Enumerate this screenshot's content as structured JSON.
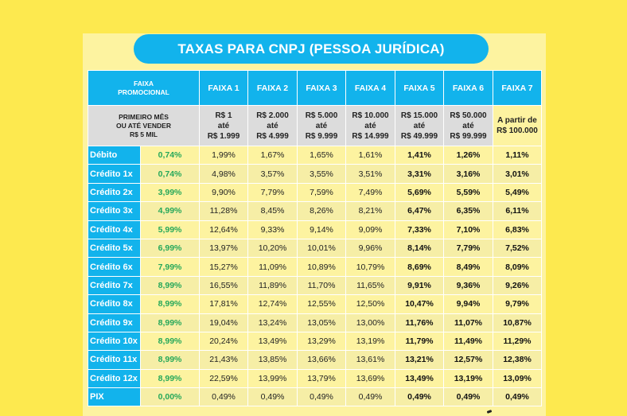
{
  "title": "TAXAS PARA CNPJ (PESSOA JURÍDICA)",
  "header": {
    "promo_label": [
      "FAIXA",
      "PROMOCIONAL"
    ],
    "faixas": [
      "FAIXA 1",
      "FAIXA 2",
      "FAIXA 3",
      "FAIXA 4",
      "FAIXA 5",
      "FAIXA 6",
      "FAIXA 7"
    ]
  },
  "subheader": {
    "promo_desc": [
      "PRIMEIRO MÊS",
      "OU ATÉ VENDER",
      "R$ 5 MIL"
    ],
    "ranges": [
      [
        "R$ 1",
        "até",
        "R$ 1.999"
      ],
      [
        "R$ 2.000",
        "até",
        "R$ 4.999"
      ],
      [
        "R$ 5.000",
        "até",
        "R$ 9.999"
      ],
      [
        "R$ 10.000",
        "até",
        "R$ 14.999"
      ],
      [
        "R$ 15.000",
        "até",
        "R$ 49.999"
      ],
      [
        "R$ 50.000",
        "até",
        "R$ 99.999"
      ],
      [
        "A partir de",
        "R$ 100.000"
      ]
    ]
  },
  "rows": [
    {
      "label": "Débito",
      "promo": "0,74%",
      "values": [
        "1,99%",
        "1,67%",
        "1,65%",
        "1,61%",
        "1,41%",
        "1,26%",
        "1,11%"
      ]
    },
    {
      "label": "Crédito 1x",
      "promo": "0,74%",
      "values": [
        "4,98%",
        "3,57%",
        "3,55%",
        "3,51%",
        "3,31%",
        "3,16%",
        "3,01%"
      ]
    },
    {
      "label": "Crédito 2x",
      "promo": "3,99%",
      "values": [
        "9,90%",
        "7,79%",
        "7,59%",
        "7,49%",
        "5,69%",
        "5,59%",
        "5,49%"
      ]
    },
    {
      "label": "Crédito 3x",
      "promo": "4,99%",
      "values": [
        "11,28%",
        "8,45%",
        "8,26%",
        "8,21%",
        "6,47%",
        "6,35%",
        "6,11%"
      ]
    },
    {
      "label": "Crédito 4x",
      "promo": "5,99%",
      "values": [
        "12,64%",
        "9,33%",
        "9,14%",
        "9,09%",
        "7,33%",
        "7,10%",
        "6,83%"
      ]
    },
    {
      "label": "Crédito 5x",
      "promo": "6,99%",
      "values": [
        "13,97%",
        "10,20%",
        "10,01%",
        "9,96%",
        "8,14%",
        "7,79%",
        "7,52%"
      ]
    },
    {
      "label": "Crédito 6x",
      "promo": "7,99%",
      "values": [
        "15,27%",
        "11,09%",
        "10,89%",
        "10,79%",
        "8,69%",
        "8,49%",
        "8,09%"
      ]
    },
    {
      "label": "Crédito 7x",
      "promo": "8,99%",
      "values": [
        "16,55%",
        "11,89%",
        "11,70%",
        "11,65%",
        "9,91%",
        "9,36%",
        "9,26%"
      ]
    },
    {
      "label": "Crédito 8x",
      "promo": "8,99%",
      "values": [
        "17,81%",
        "12,74%",
        "12,55%",
        "12,50%",
        "10,47%",
        "9,94%",
        "9,79%"
      ]
    },
    {
      "label": "Crédito 9x",
      "promo": "8,99%",
      "values": [
        "19,04%",
        "13,24%",
        "13,05%",
        "13,00%",
        "11,76%",
        "11,07%",
        "10,87%"
      ]
    },
    {
      "label": "Crédito 10x",
      "promo": "8,99%",
      "values": [
        "20,24%",
        "13,49%",
        "13,29%",
        "13,19%",
        "11,79%",
        "11,49%",
        "11,29%"
      ]
    },
    {
      "label": "Crédito 11x",
      "promo": "8,99%",
      "values": [
        "21,43%",
        "13,85%",
        "13,66%",
        "13,61%",
        "13,21%",
        "12,57%",
        "12,38%"
      ]
    },
    {
      "label": "Crédito 12x",
      "promo": "8,99%",
      "values": [
        "22,59%",
        "13,99%",
        "13,79%",
        "13,69%",
        "13,49%",
        "13,19%",
        "13,09%"
      ]
    },
    {
      "label": "PIX",
      "promo": "0,00%",
      "values": [
        "0,49%",
        "0,49%",
        "0,49%",
        "0,49%",
        "0,49%",
        "0,49%",
        "0,49%"
      ]
    }
  ],
  "colors": {
    "background": "#fde94f",
    "accent_blue": "#12b3ec",
    "promo_green": "#26a85a"
  }
}
